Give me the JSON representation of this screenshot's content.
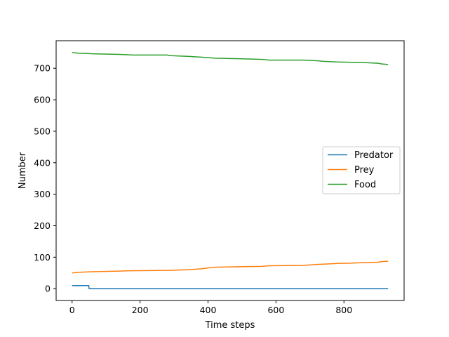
{
  "chart_data": {
    "type": "line",
    "title": "",
    "xlabel": "Time steps",
    "ylabel": "Number",
    "xlim": [
      -47,
      977
    ],
    "ylim": [
      -37.5,
      787.5
    ],
    "xticks": [
      0,
      200,
      400,
      600,
      800
    ],
    "yticks": [
      0,
      100,
      200,
      300,
      400,
      500,
      600,
      700
    ],
    "grid": false,
    "legend_position": "center-right",
    "series": [
      {
        "name": "Predator",
        "color": "#1f77b4",
        "x": [
          0,
          49,
          50,
          930
        ],
        "y": [
          10,
          10,
          0,
          0
        ]
      },
      {
        "name": "Prey",
        "color": "#ff7f0e",
        "x": [
          0,
          20,
          60,
          140,
          170,
          280,
          340,
          380,
          400,
          420,
          500,
          560,
          580,
          680,
          720,
          740,
          780,
          820,
          860,
          900,
          910,
          930
        ],
        "y": [
          50,
          52,
          54,
          56,
          57,
          58,
          60,
          63,
          66,
          68,
          70,
          71,
          73,
          74,
          77,
          78,
          80,
          81,
          83,
          84,
          86,
          87
        ]
      },
      {
        "name": "Food",
        "color": "#2ca02c",
        "x": [
          0,
          20,
          60,
          140,
          180,
          280,
          290,
          340,
          370,
          400,
          420,
          500,
          560,
          580,
          680,
          720,
          740,
          780,
          820,
          860,
          900,
          910,
          930
        ],
        "y": [
          750,
          748,
          746,
          744,
          742,
          742,
          740,
          738,
          736,
          734,
          732,
          730,
          728,
          726,
          726,
          724,
          722,
          720,
          719,
          718,
          716,
          714,
          712
        ]
      }
    ]
  }
}
